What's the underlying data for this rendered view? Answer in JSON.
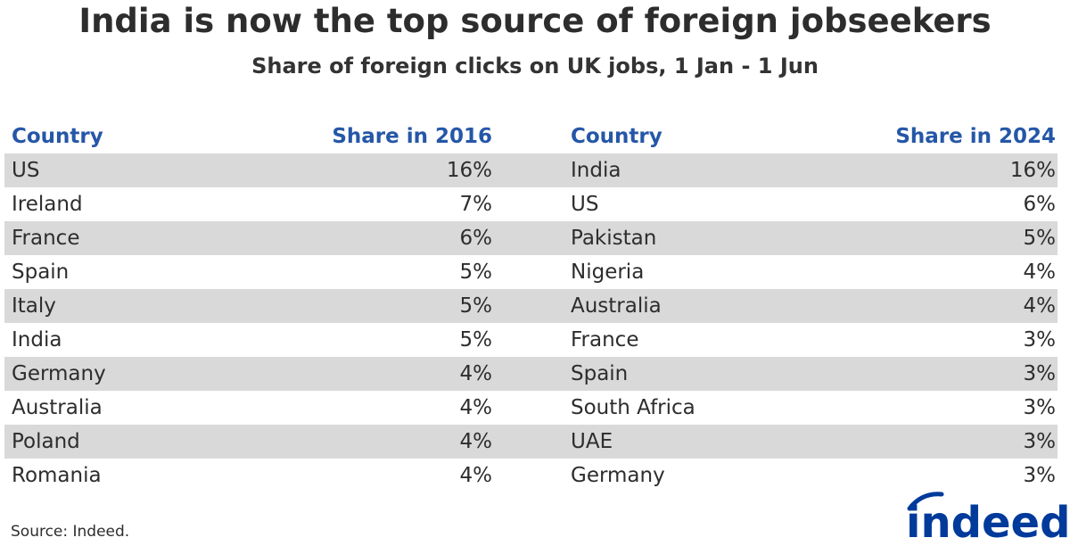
{
  "header": {
    "title": "India is now the top source of foreign jobseekers",
    "subtitle": "Share of foreign clicks on UK jobs, 1 Jan - 1 Jun"
  },
  "table": {
    "columns": [
      "Country",
      "Share in 2016",
      "Country",
      "Share in 2024"
    ],
    "rows": [
      [
        "US",
        "16%",
        "India",
        "16%"
      ],
      [
        "Ireland",
        "7%",
        "US",
        "6%"
      ],
      [
        "France",
        "6%",
        "Pakistan",
        "5%"
      ],
      [
        "Spain",
        "5%",
        "Nigeria",
        "4%"
      ],
      [
        "Italy",
        "5%",
        "Australia",
        "4%"
      ],
      [
        "India",
        "5%",
        "France",
        "3%"
      ],
      [
        "Germany",
        "4%",
        "Spain",
        "3%"
      ],
      [
        "Australia",
        "4%",
        "South Africa",
        "3%"
      ],
      [
        "Poland",
        "4%",
        "UAE",
        "3%"
      ],
      [
        "Romania",
        "4%",
        "Germany",
        "3%"
      ]
    ]
  },
  "footer": {
    "source": "Source: Indeed.",
    "logo_text": "indeed"
  },
  "colors": {
    "header_blue": "#2557a7",
    "row_shade": "#d9d9d9",
    "logo_blue": "#003a9b"
  },
  "chart_data": {
    "type": "table",
    "title": "India is now the top source of foreign jobseekers",
    "subtitle": "Share of foreign clicks on UK jobs, 1 Jan - 1 Jun",
    "series": [
      {
        "name": "Share in 2016",
        "categories": [
          "US",
          "Ireland",
          "France",
          "Spain",
          "Italy",
          "India",
          "Germany",
          "Australia",
          "Poland",
          "Romania"
        ],
        "values": [
          16,
          7,
          6,
          5,
          5,
          5,
          4,
          4,
          4,
          4
        ]
      },
      {
        "name": "Share in 2024",
        "categories": [
          "India",
          "US",
          "Pakistan",
          "Nigeria",
          "Australia",
          "France",
          "Spain",
          "South Africa",
          "UAE",
          "Germany"
        ],
        "values": [
          16,
          6,
          5,
          4,
          4,
          3,
          3,
          3,
          3,
          3
        ]
      }
    ],
    "unit": "%",
    "source": "Source: Indeed."
  }
}
